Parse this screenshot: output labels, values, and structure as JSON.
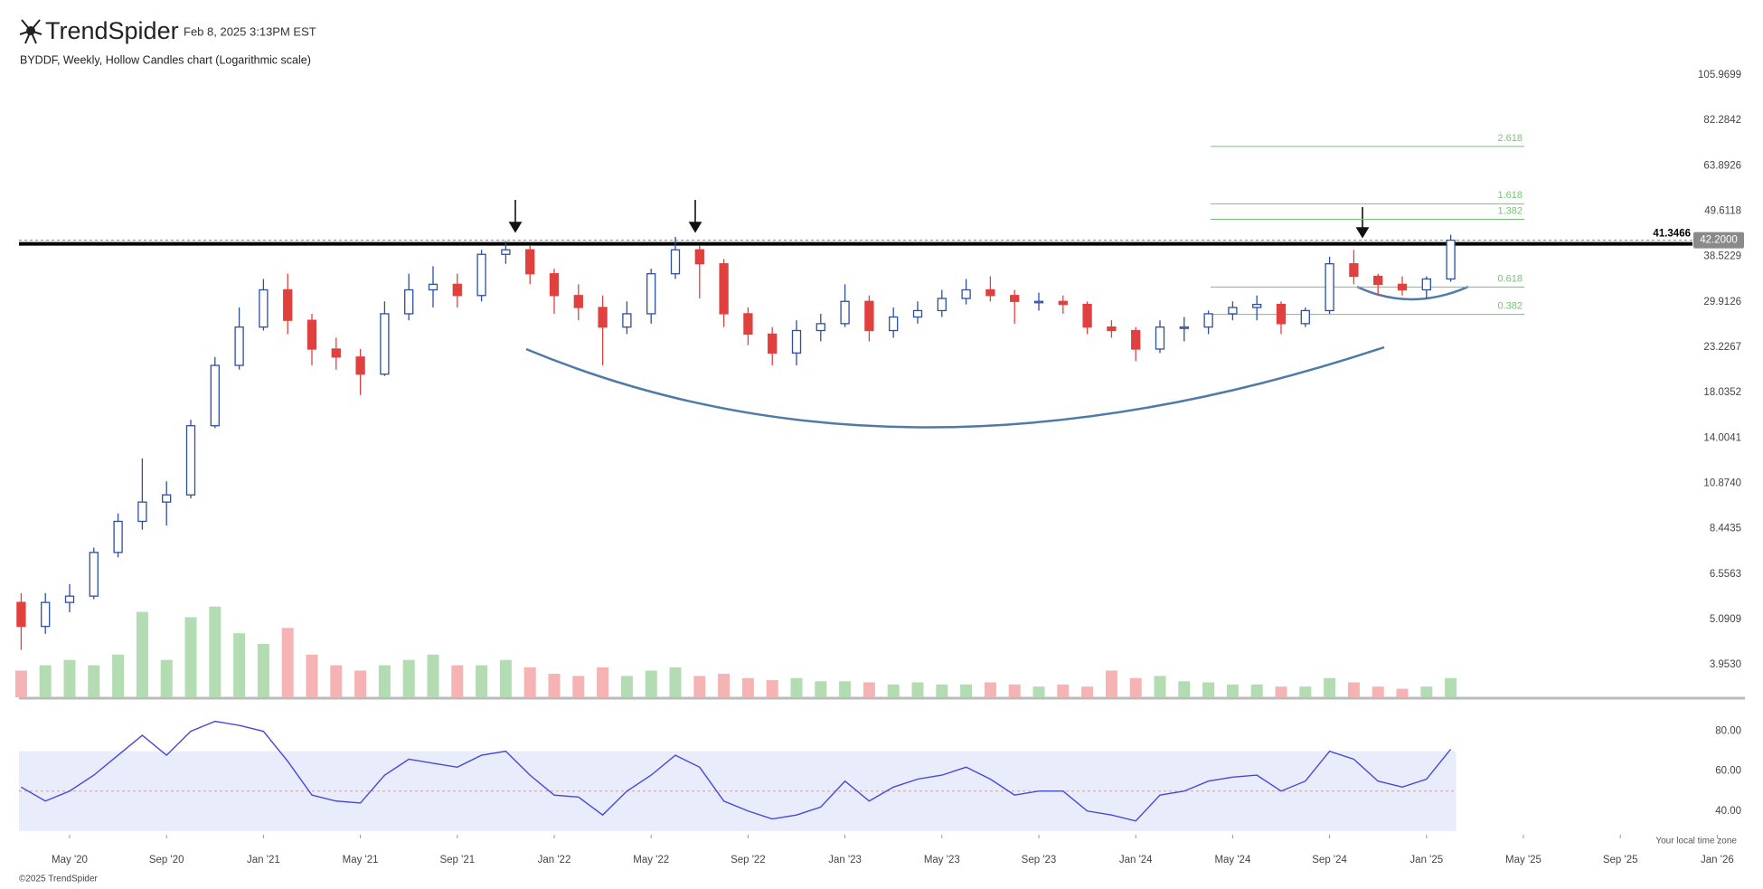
{
  "header": {
    "brand": "TrendSpider",
    "timestamp": "Feb 8, 2025 3:13PM EST",
    "footer": "©2025 TrendSpider"
  },
  "chart_data": {
    "type": "candlestick",
    "title": "BYDDF, Weekly, Hollow Candles chart (Logarithmic scale)",
    "x": [
      "2020-03",
      "2020-04",
      "2020-05",
      "2020-06",
      "2020-07",
      "2020-08",
      "2020-09",
      "2020-10",
      "2020-11",
      "2020-12",
      "2021-01",
      "2021-02",
      "2021-03",
      "2021-04",
      "2021-05",
      "2021-06",
      "2021-07",
      "2021-08",
      "2021-09",
      "2021-10",
      "2021-11",
      "2021-12",
      "2022-01",
      "2022-02",
      "2022-03",
      "2022-04",
      "2022-05",
      "2022-06",
      "2022-07",
      "2022-08",
      "2022-09",
      "2022-10",
      "2022-11",
      "2022-12",
      "2023-01",
      "2023-02",
      "2023-03",
      "2023-04",
      "2023-05",
      "2023-06",
      "2023-07",
      "2023-08",
      "2023-09",
      "2023-10",
      "2023-11",
      "2023-12",
      "2024-01",
      "2024-02",
      "2024-03",
      "2024-04",
      "2024-05",
      "2024-06",
      "2024-07",
      "2024-08",
      "2024-09",
      "2024-10",
      "2024-11",
      "2024-12",
      "2025-01",
      "2025-02"
    ],
    "open": [
      5.6,
      4.9,
      5.6,
      5.8,
      7.4,
      8.8,
      9.8,
      10.2,
      15,
      21,
      26,
      32,
      27,
      23,
      22,
      20,
      28,
      32,
      33,
      31,
      39,
      40,
      35,
      31,
      29,
      26,
      28,
      35,
      40,
      37,
      28,
      25,
      22.5,
      25.5,
      26.5,
      30,
      25.5,
      27.5,
      28.5,
      30.5,
      32,
      31,
      30,
      30,
      29.5,
      26,
      25.5,
      23,
      26,
      26,
      28,
      29,
      29.5,
      26.5,
      28.5,
      37,
      34.5,
      33,
      32,
      34
    ],
    "high": [
      5.9,
      5.9,
      6.2,
      7.6,
      9.2,
      12.5,
      11,
      15.5,
      22,
      29,
      34,
      35,
      28,
      24.5,
      23,
      30,
      35,
      36.5,
      35,
      40,
      42,
      41,
      36,
      33,
      31,
      30,
      36,
      43,
      41,
      38,
      29,
      26,
      27,
      28,
      33,
      31,
      29,
      30,
      32,
      34,
      34.5,
      32,
      31.5,
      31,
      30,
      27,
      26,
      27,
      27.5,
      28.5,
      30,
      31,
      30,
      29,
      38.5,
      40,
      35,
      34.5,
      34.5,
      43.5
    ],
    "low": [
      4.3,
      4.7,
      5.3,
      5.7,
      7.2,
      8.4,
      8.6,
      10,
      14.8,
      20.5,
      25.5,
      25,
      21,
      20.5,
      17.8,
      19.8,
      27,
      29,
      29,
      30,
      37,
      33,
      28,
      27,
      21,
      25,
      26.5,
      34,
      30.5,
      26,
      23.5,
      21,
      21,
      24,
      26,
      24,
      24.5,
      26.5,
      27.5,
      29.5,
      30,
      26.5,
      28.5,
      28,
      25,
      24.5,
      21.5,
      22.5,
      24,
      25,
      27,
      27,
      25,
      26,
      28,
      33,
      31,
      31,
      30.5,
      33.5
    ],
    "close": [
      4.9,
      5.6,
      5.8,
      7.4,
      8.8,
      9.8,
      10.2,
      15,
      21,
      26,
      32,
      27,
      23,
      22,
      20,
      28,
      32,
      33,
      31,
      39,
      40,
      35,
      31,
      29,
      26,
      28,
      35,
      40,
      37,
      28,
      25,
      22.5,
      25.5,
      26.5,
      30,
      25.5,
      27.5,
      28.5,
      30.5,
      32,
      31,
      30,
      30,
      29.5,
      26,
      25.5,
      23,
      26,
      26,
      28,
      29,
      29.5,
      26.5,
      28.5,
      37,
      34.5,
      33,
      32,
      34,
      42.2
    ],
    "up_color": "#2c4f9e",
    "down_color": "#e0413f",
    "volume": [
      25,
      30,
      35,
      30,
      40,
      80,
      35,
      75,
      85,
      60,
      50,
      65,
      40,
      30,
      25,
      30,
      35,
      40,
      30,
      30,
      35,
      28,
      22,
      20,
      28,
      20,
      25,
      28,
      20,
      22,
      18,
      16,
      18,
      15,
      15,
      14,
      12,
      14,
      12,
      12,
      14,
      12,
      10,
      12,
      10,
      25,
      18,
      20,
      15,
      14,
      12,
      12,
      10,
      10,
      18,
      14,
      10,
      8,
      10,
      18
    ],
    "volume_ylim": [
      0,
      100
    ],
    "volume_up_color": "#b3dcb3",
    "volume_down_color": "#f6b3b3",
    "rsi": [
      52,
      45,
      50,
      58,
      68,
      78,
      68,
      80,
      85,
      83,
      80,
      65,
      48,
      45,
      44,
      58,
      66,
      64,
      62,
      68,
      70,
      58,
      48,
      47,
      38,
      50,
      58,
      68,
      62,
      45,
      40,
      36,
      38,
      42,
      55,
      45,
      52,
      56,
      58,
      62,
      56,
      48,
      50,
      50,
      40,
      38,
      35,
      48,
      50,
      55,
      57,
      58,
      50,
      55,
      70,
      66,
      55,
      52,
      56,
      71
    ],
    "rsi_color": "#4848d8",
    "rsi_band": [
      30,
      70
    ],
    "rsi_mid": 50,
    "rsi_ylim": [
      29,
      93
    ],
    "rsi_yticks": [
      {
        "value": 40,
        "label": "40.00"
      },
      {
        "value": 60,
        "label": "60.00"
      },
      {
        "value": 80,
        "label": "80.00"
      }
    ],
    "log_scale": true,
    "ylim": [
      3.3,
      114.3
    ],
    "yticks": [
      105.9699,
      82.2842,
      63.8926,
      49.6118,
      38.5229,
      29.9126,
      23.2267,
      18.0352,
      14.0041,
      {
        "value": 10.874,
        "label": "10.8740"
      },
      8.4435,
      6.5563,
      5.0909,
      {
        "value": 3.953,
        "label": "3.9530"
      }
    ],
    "xticks": [
      {
        "value": "2020-05",
        "label": "May '20"
      },
      {
        "value": "2020-09",
        "label": "Sep '20"
      },
      {
        "value": "2021-01",
        "label": "Jan '21"
      },
      {
        "value": "2021-05",
        "label": "May '21"
      },
      {
        "value": "2021-09",
        "label": "Sep '21"
      },
      {
        "value": "2022-01",
        "label": "Jan '22"
      },
      {
        "value": "2022-05",
        "label": "May '22"
      },
      {
        "value": "2022-09",
        "label": "Sep '22"
      },
      {
        "value": "2023-01",
        "label": "Jan '23"
      },
      {
        "value": "2023-05",
        "label": "May '23"
      },
      {
        "value": "2023-09",
        "label": "Sep '23"
      },
      {
        "value": "2024-01",
        "label": "Jan '24"
      },
      {
        "value": "2024-05",
        "label": "May '24"
      },
      {
        "value": "2024-09",
        "label": "Sep '24"
      },
      {
        "value": "2025-01",
        "label": "Jan '25"
      },
      {
        "value": "2025-05",
        "label": "May '25"
      },
      {
        "value": "2025-09",
        "label": "Sep '25"
      },
      {
        "value": "2026-01",
        "label": "Jan '26"
      }
    ],
    "timezone_note": "Your local time zone",
    "resistance": {
      "value": 41.3466
    },
    "last_price": {
      "value": 42.2,
      "label": "42.2000"
    },
    "fibonacci": {
      "color": "#79c079",
      "levels": [
        {
          "ratio": 2.618,
          "price": 71.2
        },
        {
          "ratio": 1.618,
          "price": 51.7
        },
        {
          "ratio": 1.382,
          "price": 47.4
        },
        {
          "ratio": 0.618,
          "price": 32.5
        },
        {
          "ratio": 0.382,
          "price": 27.9
        }
      ]
    }
  }
}
